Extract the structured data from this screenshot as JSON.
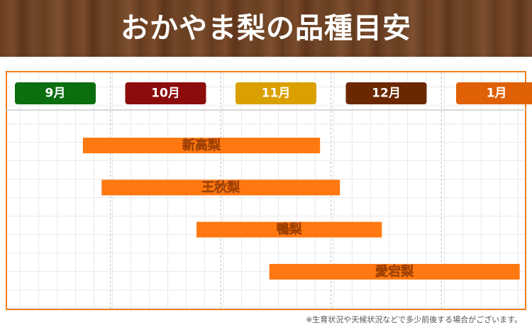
{
  "chart_data": {
    "type": "gantt",
    "title": "おかやま梨の品種目安",
    "categories": [
      "9月",
      "10月",
      "11月",
      "12月",
      "1月"
    ],
    "category_colors": [
      "#0b6e0f",
      "#8c0c0c",
      "#d9a000",
      "#6b2800",
      "#e06006"
    ],
    "xlim": [
      0.05,
      4.77
    ],
    "bars": [
      {
        "name": "新高梨",
        "start": 0.75,
        "end": 2.9
      },
      {
        "name": "王秋梨",
        "start": 0.92,
        "end": 3.08
      },
      {
        "name": "鴨梨",
        "start": 1.78,
        "end": 3.46
      },
      {
        "name": "愛宕梨",
        "start": 2.44,
        "end": 4.71
      }
    ],
    "color": "#ff7810",
    "grid": true,
    "note": "※生育状況や天候状況などで多少前後する場合がございます。"
  }
}
